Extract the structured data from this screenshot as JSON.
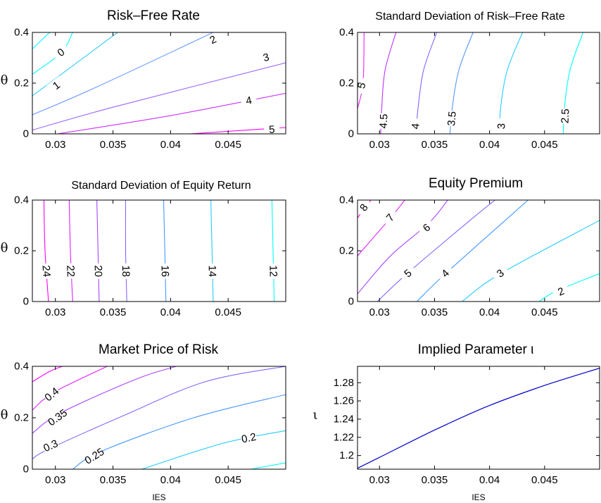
{
  "chart_data": [
    {
      "id": "p1",
      "type": "contour",
      "title": "Risk–Free Rate",
      "xlabel": "",
      "ylabel": "θ",
      "xlim": [
        0.028,
        0.05
      ],
      "ylim": [
        0,
        0.4
      ],
      "xticks": [
        "0.03",
        "0.035",
        "0.04",
        "0.045"
      ],
      "yticks": [
        "0",
        "0.2",
        "0.4"
      ],
      "contours": [
        {
          "level": "5",
          "points": [
            [
              0.0417,
              0
            ],
            [
              0.05,
              0.025
            ]
          ],
          "label_at": [
            0.0488,
            0.016
          ]
        },
        {
          "level": "4",
          "points": [
            [
              0.0302,
              0
            ],
            [
              0.04,
              0.072
            ],
            [
              0.05,
              0.16
            ]
          ],
          "label_at": [
            0.0468,
            0.13
          ]
        },
        {
          "level": "3",
          "points": [
            [
              0.028,
              0.015
            ],
            [
              0.035,
              0.105
            ],
            [
              0.05,
              0.28
            ]
          ],
          "label_at": [
            0.0483,
            0.3
          ]
        },
        {
          "level": "2",
          "points": [
            [
              0.028,
              0.075
            ],
            [
              0.0336,
              0.185
            ],
            [
              0.0437,
              0.4
            ]
          ],
          "label_at": [
            0.0437,
            0.37
          ]
        },
        {
          "level": "1",
          "points": [
            [
              0.028,
              0.15
            ],
            [
              0.0354,
              0.4
            ]
          ],
          "label_at": [
            0.0301,
            0.19
          ]
        },
        {
          "level": "0",
          "points": [
            [
              0.028,
              0.235
            ],
            [
              0.0305,
              0.32
            ],
            [
              0.0315,
              0.4
            ]
          ],
          "label_at": [
            0.0305,
            0.32
          ]
        },
        {
          "level": "",
          "points": [
            [
              0.028,
              0.335
            ],
            [
              0.0295,
              0.4
            ]
          ],
          "label_at": null
        }
      ]
    },
    {
      "id": "p2",
      "type": "contour",
      "title": "Standard Deviation of Risk–Free Rate",
      "xlabel": "",
      "ylabel": "",
      "xlim": [
        0.028,
        0.05
      ],
      "ylim": [
        0,
        0.4
      ],
      "xticks": [
        "0.03",
        "0.035",
        "0.04",
        "0.045"
      ],
      "yticks": [
        "0",
        "0.2",
        "0.4"
      ],
      "contours": [
        {
          "level": "5",
          "points": [
            [
              0.028,
              0.1
            ],
            [
              0.0285,
              0.2
            ],
            [
              0.0286,
              0.4
            ]
          ],
          "label_at": [
            0.0284,
            0.19
          ]
        },
        {
          "level": "4.5",
          "points": [
            [
              0.0301,
              0
            ],
            [
              0.0302,
              0.1
            ],
            [
              0.0305,
              0.25
            ],
            [
              0.0315,
              0.4
            ]
          ],
          "label_at": [
            0.0304,
            0.05
          ]
        },
        {
          "level": "4",
          "points": [
            [
              0.0333,
              0
            ],
            [
              0.0335,
              0.1
            ],
            [
              0.034,
              0.25
            ],
            [
              0.0352,
              0.4
            ]
          ],
          "label_at": [
            0.0333,
            0.03
          ]
        },
        {
          "level": "3.5",
          "points": [
            [
              0.0364,
              0
            ],
            [
              0.0366,
              0.1
            ],
            [
              0.0372,
              0.25
            ],
            [
              0.0385,
              0.4
            ]
          ],
          "label_at": [
            0.0366,
            0.06
          ]
        },
        {
          "level": "3",
          "points": [
            [
              0.0409,
              0
            ],
            [
              0.041,
              0.1
            ],
            [
              0.0416,
              0.25
            ],
            [
              0.043,
              0.4
            ]
          ],
          "label_at": [
            0.0411,
            0.03
          ]
        },
        {
          "level": "2.5",
          "points": [
            [
              0.0467,
              0
            ],
            [
              0.0468,
              0.1
            ],
            [
              0.0473,
              0.25
            ],
            [
              0.0485,
              0.4
            ]
          ],
          "label_at": [
            0.0469,
            0.07
          ]
        }
      ]
    },
    {
      "id": "p3",
      "type": "contour",
      "title": "Standard Deviation of Equity Return",
      "xlabel": "",
      "ylabel": "θ",
      "xlim": [
        0.028,
        0.05
      ],
      "ylim": [
        0,
        0.4
      ],
      "xticks": [
        "0.03",
        "0.035",
        "0.04",
        "0.045"
      ],
      "yticks": [
        "0",
        "0.2",
        "0.4"
      ],
      "contours": [
        {
          "level": "24",
          "points": [
            [
              0.0294,
              0
            ],
            [
              0.0291,
              0.2
            ],
            [
              0.029,
              0.4
            ]
          ],
          "label_at": [
            0.0292,
            0.12
          ]
        },
        {
          "level": "22",
          "points": [
            [
              0.0315,
              0
            ],
            [
              0.0313,
              0.2
            ],
            [
              0.0312,
              0.4
            ]
          ],
          "label_at": [
            0.0313,
            0.12
          ]
        },
        {
          "level": "20",
          "points": [
            [
              0.0338,
              0
            ],
            [
              0.0337,
              0.2
            ],
            [
              0.0336,
              0.4
            ]
          ],
          "label_at": [
            0.0337,
            0.12
          ]
        },
        {
          "level": "18",
          "points": [
            [
              0.0362,
              0
            ],
            [
              0.0361,
              0.2
            ],
            [
              0.0361,
              0.4
            ]
          ],
          "label_at": [
            0.0361,
            0.12
          ]
        },
        {
          "level": "16",
          "points": [
            [
              0.0396,
              0
            ],
            [
              0.0395,
              0.2
            ],
            [
              0.0394,
              0.4
            ]
          ],
          "label_at": [
            0.0395,
            0.12
          ]
        },
        {
          "level": "14",
          "points": [
            [
              0.0437,
              0
            ],
            [
              0.0436,
              0.2
            ],
            [
              0.0435,
              0.4
            ]
          ],
          "label_at": [
            0.0436,
            0.12
          ]
        },
        {
          "level": "12",
          "points": [
            [
              0.049,
              0
            ],
            [
              0.0489,
              0.2
            ],
            [
              0.0488,
              0.4
            ]
          ],
          "label_at": [
            0.0489,
            0.12
          ]
        }
      ]
    },
    {
      "id": "p4",
      "type": "contour",
      "title": "Equity Premium",
      "xlabel": "",
      "ylabel": "",
      "xlim": [
        0.028,
        0.05
      ],
      "ylim": [
        0,
        0.4
      ],
      "xticks": [
        "0.03",
        "0.035",
        "0.04",
        "0.045"
      ],
      "yticks": [
        "0",
        "0.2",
        "0.4"
      ],
      "contours": [
        {
          "level": "8",
          "points": [
            [
              0.028,
              0.33
            ],
            [
              0.0292,
              0.4
            ]
          ],
          "label_at": [
            0.0286,
            0.37
          ]
        },
        {
          "level": "7",
          "points": [
            [
              0.028,
              0.18
            ],
            [
              0.031,
              0.33
            ],
            [
              0.0323,
              0.4
            ]
          ],
          "label_at": [
            0.031,
            0.33
          ]
        },
        {
          "level": "6",
          "points": [
            [
              0.028,
              0.03
            ],
            [
              0.031,
              0.18
            ],
            [
              0.0345,
              0.31
            ],
            [
              0.0362,
              0.4
            ]
          ],
          "label_at": [
            0.0343,
            0.29
          ]
        },
        {
          "level": "5",
          "points": [
            [
              0.0298,
              0
            ],
            [
              0.0325,
              0.11
            ],
            [
              0.0385,
              0.33
            ],
            [
              0.0405,
              0.4
            ]
          ],
          "label_at": [
            0.0326,
            0.11
          ]
        },
        {
          "level": "4",
          "points": [
            [
              0.0334,
              0
            ],
            [
              0.036,
              0.11
            ],
            [
              0.0435,
              0.4
            ]
          ],
          "label_at": [
            0.036,
            0.11
          ]
        },
        {
          "level": "3",
          "points": [
            [
              0.0375,
              0
            ],
            [
              0.041,
              0.11
            ],
            [
              0.05,
              0.32
            ]
          ],
          "label_at": [
            0.041,
            0.11
          ]
        },
        {
          "level": "2",
          "points": [
            [
              0.0445,
              0
            ],
            [
              0.046,
              0.04
            ],
            [
              0.05,
              0.11
            ]
          ],
          "label_at": [
            0.0465,
            0.038
          ]
        }
      ]
    },
    {
      "id": "p5",
      "type": "contour",
      "title": "Market Price of Risk",
      "xlabel": "IES",
      "ylabel": "θ",
      "xlim": [
        0.028,
        0.05
      ],
      "ylim": [
        0,
        0.4
      ],
      "xticks": [
        "0.03",
        "0.035",
        "0.04",
        "0.045"
      ],
      "yticks": [
        "0",
        "0.2",
        "0.4"
      ],
      "contours": [
        {
          "level": "",
          "points": [
            [
              0.028,
              0.34
            ],
            [
              0.0295,
              0.38
            ],
            [
              0.0306,
              0.4
            ]
          ],
          "label_at": null
        },
        {
          "level": "0.4",
          "points": [
            [
              0.028,
              0.23
            ],
            [
              0.0299,
              0.3
            ],
            [
              0.0345,
              0.4
            ]
          ],
          "label_at": [
            0.0297,
            0.29
          ]
        },
        {
          "level": "0.35",
          "points": [
            [
              0.028,
              0.14
            ],
            [
              0.0305,
              0.22
            ],
            [
              0.037,
              0.35
            ],
            [
              0.0405,
              0.4
            ]
          ],
          "label_at": [
            0.0302,
            0.2
          ]
        },
        {
          "level": "0.3",
          "points": [
            [
              0.028,
              0.04
            ],
            [
              0.0295,
              0.08
            ],
            [
              0.036,
              0.21
            ],
            [
              0.043,
              0.34
            ],
            [
              0.05,
              0.4
            ]
          ],
          "label_at": [
            0.0296,
            0.09
          ]
        },
        {
          "level": "0.25",
          "points": [
            [
              0.0315,
              0
            ],
            [
              0.034,
              0.07
            ],
            [
              0.042,
              0.2
            ],
            [
              0.05,
              0.29
            ]
          ],
          "label_at": [
            0.0334,
            0.05
          ]
        },
        {
          "level": "0.2",
          "points": [
            [
              0.0375,
              0
            ],
            [
              0.0445,
              0.1
            ],
            [
              0.05,
              0.15
            ]
          ],
          "label_at": [
            0.0468,
            0.12
          ]
        },
        {
          "level": "",
          "points": [
            [
              0.047,
              0
            ],
            [
              0.05,
              0.025
            ]
          ],
          "label_at": null
        }
      ]
    },
    {
      "id": "p6",
      "type": "line",
      "title": "Implied Parameter ι",
      "xlabel": "IES",
      "ylabel": "ι",
      "xlim": [
        0.028,
        0.05
      ],
      "ylim": [
        1.185,
        1.298
      ],
      "xticks": [
        "0.03",
        "0.035",
        "0.04",
        "0.045"
      ],
      "yticks": [
        "1.2",
        "1.22",
        "1.24",
        "1.26",
        "1.28"
      ],
      "series": [
        {
          "x": [
            0.028,
            0.03,
            0.035,
            0.04,
            0.045,
            0.05
          ],
          "y": [
            1.186,
            1.198,
            1.228,
            1.255,
            1.277,
            1.296
          ]
        }
      ]
    }
  ]
}
